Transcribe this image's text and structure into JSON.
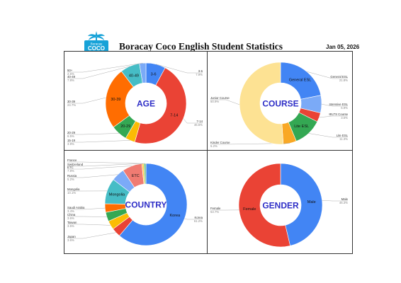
{
  "header": {
    "logo_text": [
      "Boracay",
      "COCO"
    ],
    "title": "Boracay Coco English Student Statistics",
    "date": "Jan 05, 2026"
  },
  "colors": {
    "blue": "#4285f4",
    "red": "#ea4335",
    "yellow": "#fbbc04",
    "green": "#34a853",
    "orange": "#ff6d01",
    "teal": "#46bdc6",
    "light_blue": "#7baaf7",
    "pink": "#f07b72",
    "light_yellow": "#fde293",
    "dark_orange": "#f9a825",
    "center_text": "#2f2fc7"
  },
  "chart_data": [
    {
      "type": "pie",
      "title": "AGE",
      "slices": [
        {
          "label": "3-6",
          "value": 7.9,
          "pct": "7.9%",
          "color": "#4285f4",
          "seg": "3-6"
        },
        {
          "label": "7-14",
          "value": 46.6,
          "pct": "46.6%",
          "color": "#ea4335",
          "seg": "7-14"
        },
        {
          "label": "15-19",
          "value": 3.9,
          "pct": "3.9%",
          "color": "#fbbc04",
          "seg": ""
        },
        {
          "label": "20-29",
          "value": 6.5,
          "pct": "6.5%",
          "color": "#34a853",
          "seg": "20-29"
        },
        {
          "label": "30-39",
          "value": 24.7,
          "pct": "24.7%",
          "color": "#ff6d01",
          "seg": "30-39"
        },
        {
          "label": "40-49",
          "value": 7.8,
          "pct": "7.8%",
          "color": "#46bdc6",
          "seg": "40-49"
        },
        {
          "label": "50+",
          "value": 2.6,
          "pct": "2.6%",
          "color": "#7baaf7",
          "seg": ""
        }
      ]
    },
    {
      "type": "pie",
      "title": "COURSE",
      "slices": [
        {
          "label": "General ESL",
          "value": 21.8,
          "pct": "21.8%",
          "color": "#4285f4",
          "seg": "General ESL"
        },
        {
          "label": "Intensive ESL",
          "value": 6.9,
          "pct": "6.9%",
          "color": "#7baaf7",
          "seg": ""
        },
        {
          "label": "IELTS Course",
          "value": 3.6,
          "pct": "3.6%",
          "color": "#ea4335",
          "seg": ""
        },
        {
          "label": "Lite ESL",
          "value": 11.3,
          "pct": "11.3%",
          "color": "#34a853",
          "seg": "Lite ESL"
        },
        {
          "label": "Kinder Course",
          "value": 5.2,
          "pct": "5.2%",
          "color": "#f9a825",
          "seg": ""
        },
        {
          "label": "Junior Course",
          "value": 50.9,
          "pct": "50.9%",
          "color": "#fde293",
          "seg": ""
        }
      ]
    },
    {
      "type": "pie",
      "title": "COUNTRY",
      "slices": [
        {
          "label": "Korea",
          "value": 61.2,
          "pct": "61.2%",
          "color": "#4285f4",
          "seg": "Korea"
        },
        {
          "label": "Japan",
          "value": 3.6,
          "pct": "3.6%",
          "color": "#ea4335",
          "seg": ""
        },
        {
          "label": "Taiwan",
          "value": 3.5,
          "pct": "3.5%",
          "color": "#fbbc04",
          "seg": ""
        },
        {
          "label": "China",
          "value": 3.6,
          "pct": "3.6%",
          "color": "#34a853",
          "seg": ""
        },
        {
          "label": "Saudi Arabia",
          "value": 3.4,
          "pct": "3.4%",
          "color": "#ff6d01",
          "seg": ""
        },
        {
          "label": "Mongolia",
          "value": 10.1,
          "pct": "10.1%",
          "color": "#46bdc6",
          "seg": "Mongolia"
        },
        {
          "label": "Russia",
          "value": 5.2,
          "pct": "5.2%",
          "color": "#7baaf7",
          "seg": ""
        },
        {
          "label": "ETC",
          "value": 7.8,
          "pct": "7.8%",
          "color": "#f07b72",
          "seg": "ETC"
        },
        {
          "label": "France",
          "value": 0.8,
          "pct": "",
          "color": "#fcd04f",
          "seg": ""
        },
        {
          "label": "Switzerland",
          "value": 0.8,
          "pct": "",
          "color": "#71c287",
          "seg": ""
        }
      ]
    },
    {
      "type": "pie",
      "title": "GENDER",
      "slices": [
        {
          "label": "Male",
          "value": 46.3,
          "pct": "46.3%",
          "color": "#4285f4",
          "seg": "Male"
        },
        {
          "label": "Female",
          "value": 53.7,
          "pct": "53.7%",
          "color": "#ea4335",
          "seg": "Female"
        }
      ]
    }
  ]
}
